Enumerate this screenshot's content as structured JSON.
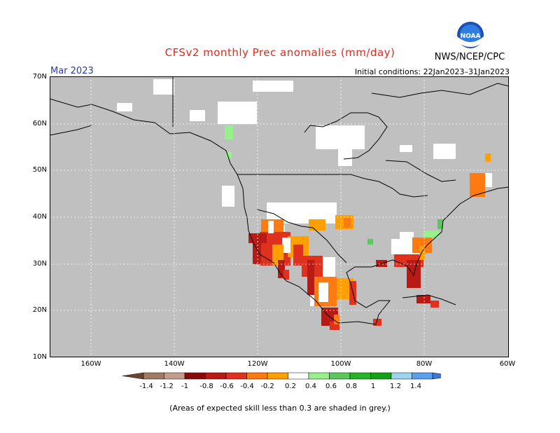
{
  "title": "CFSv2 monthly Prec anomalies (mm/day)",
  "month": "Mar 2023",
  "initial_conditions": "Initial conditions: 22Jan2023–31Jan2023",
  "agency": "NWS/NCEP/CPC",
  "logo_text": "NOAA",
  "footnote": "(Areas of expected skill less than 0.3 are shaded in grey.)",
  "lat_labels": [
    "70N",
    "60N",
    "50N",
    "40N",
    "30N",
    "20N",
    "10N"
  ],
  "lon_labels": [
    "160W",
    "140W",
    "120W",
    "100W",
    "80W",
    "60W"
  ],
  "colorbar_labels": [
    "-1.4",
    "-1.2",
    "-1",
    "-0.8",
    "-0.6",
    "-0.4",
    "-0.2",
    "0.2",
    "0.4",
    "0.6",
    "0.8",
    "1",
    "1.2",
    "1.4"
  ],
  "colors": {
    "low_skill": "#c0c0c0",
    "scale": [
      "#6a4630",
      "#a07a62",
      "#c49e8c",
      "#8a0a0a",
      "#b81a14",
      "#e0301e",
      "#ff7a10",
      "#ffa000",
      "#ffffff",
      "#96f08c",
      "#5ac85a",
      "#28b428",
      "#14a014",
      "#a0d2f0",
      "#5aa0ee",
      "#3c78dc"
    ]
  }
}
